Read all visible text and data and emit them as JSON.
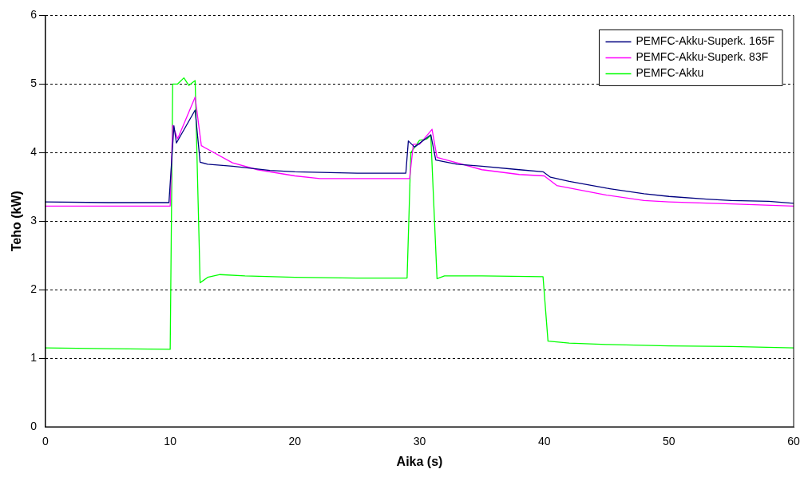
{
  "chart_data": {
    "type": "line",
    "xlabel": "Aika (s)",
    "ylabel": "Teho (kW)",
    "xlim": [
      0,
      60
    ],
    "xticks": [
      0,
      10,
      20,
      30,
      40,
      50,
      60
    ],
    "ylim": [
      0,
      6
    ],
    "yticks": [
      0,
      1,
      2,
      3,
      4,
      5,
      6
    ],
    "grid": "y",
    "legend": "top right",
    "marker": "none",
    "line_style": "solid",
    "series": [
      {
        "name": "PEMFC-Akku-Superk. 165F",
        "color": "#000080",
        "x": [
          0,
          5,
          9.9,
          10.3,
          10.5,
          12,
          12.4,
          13,
          15,
          18,
          20,
          25,
          28.9,
          29.1,
          29.6,
          30.9,
          31.3,
          33,
          35,
          38,
          39.9,
          40.5,
          42,
          45,
          48,
          50,
          53,
          55,
          58,
          60
        ],
        "values": [
          3.28,
          3.27,
          3.27,
          4.39,
          4.14,
          4.62,
          3.86,
          3.83,
          3.8,
          3.74,
          3.72,
          3.7,
          3.7,
          4.17,
          4.08,
          4.26,
          3.89,
          3.83,
          3.8,
          3.75,
          3.72,
          3.64,
          3.58,
          3.48,
          3.4,
          3.36,
          3.32,
          3.3,
          3.29,
          3.26
        ]
      },
      {
        "name": "PEMFC-Akku-Superk. 83F",
        "color": "#ff00ff",
        "x": [
          0,
          5,
          10,
          10.2,
          10.6,
          12,
          12.5,
          13,
          15,
          17,
          20,
          22,
          25,
          29.2,
          29.5,
          30,
          31,
          31.4,
          33,
          35,
          38,
          40,
          41,
          43,
          45,
          48,
          50,
          55,
          60
        ],
        "values": [
          3.22,
          3.22,
          3.22,
          4.4,
          4.2,
          4.81,
          4.1,
          4.05,
          3.85,
          3.75,
          3.66,
          3.62,
          3.62,
          3.62,
          4.12,
          4.12,
          4.34,
          3.93,
          3.85,
          3.75,
          3.68,
          3.66,
          3.52,
          3.45,
          3.38,
          3.3,
          3.28,
          3.25,
          3.22
        ]
      },
      {
        "name": "PEMFC-Akku",
        "color": "#00ff00",
        "x": [
          0,
          5,
          10,
          10.2,
          10.6,
          11.1,
          11.5,
          12,
          12.4,
          13,
          14,
          16,
          20,
          25,
          29,
          29.3,
          30,
          30.6,
          30.9,
          31.4,
          32,
          35,
          39.9,
          40.3,
          42,
          45,
          50,
          55,
          60
        ],
        "values": [
          1.15,
          1.14,
          1.13,
          5.0,
          5.0,
          5.09,
          4.98,
          5.05,
          2.1,
          2.18,
          2.22,
          2.2,
          2.18,
          2.17,
          2.17,
          4.0,
          4.18,
          4.2,
          4.25,
          2.16,
          2.2,
          2.2,
          2.19,
          1.25,
          1.22,
          1.2,
          1.18,
          1.17,
          1.15
        ]
      }
    ]
  }
}
